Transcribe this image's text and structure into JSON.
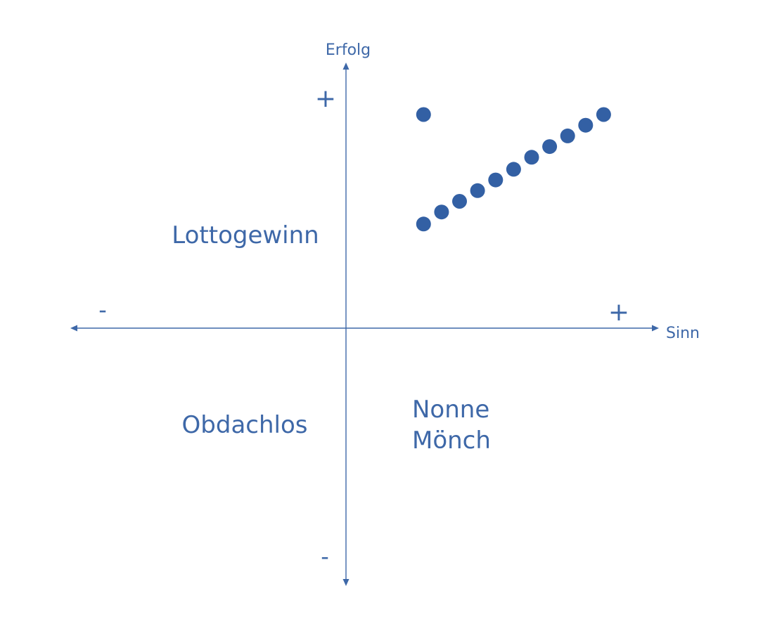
{
  "colors": {
    "accent": "#3e68a8",
    "dots": "#3360a4",
    "background": "#ffffff"
  },
  "axes": {
    "y_label": "Erfolg",
    "x_label": "Sinn",
    "y_plus": "+",
    "y_minus": "-",
    "x_plus": "+",
    "x_minus": "-"
  },
  "quadrants": {
    "top_left": "Lottogewinn",
    "bottom_left": "Obdachlos",
    "bottom_right_line1": "Nonne",
    "bottom_right_line2": "Mönch"
  },
  "points": {
    "outlier": {
      "sinn": 0.28,
      "erfolg": 0.8
    },
    "series": [
      {
        "sinn": 0.28,
        "erfolg": 0.39
      },
      {
        "sinn": 0.345,
        "erfolg": 0.435
      },
      {
        "sinn": 0.41,
        "erfolg": 0.475
      },
      {
        "sinn": 0.475,
        "erfolg": 0.515
      },
      {
        "sinn": 0.54,
        "erfolg": 0.555
      },
      {
        "sinn": 0.605,
        "erfolg": 0.595
      },
      {
        "sinn": 0.67,
        "erfolg": 0.64
      },
      {
        "sinn": 0.735,
        "erfolg": 0.68
      },
      {
        "sinn": 0.8,
        "erfolg": 0.72
      },
      {
        "sinn": 0.865,
        "erfolg": 0.76
      },
      {
        "sinn": 0.93,
        "erfolg": 0.8
      }
    ]
  }
}
